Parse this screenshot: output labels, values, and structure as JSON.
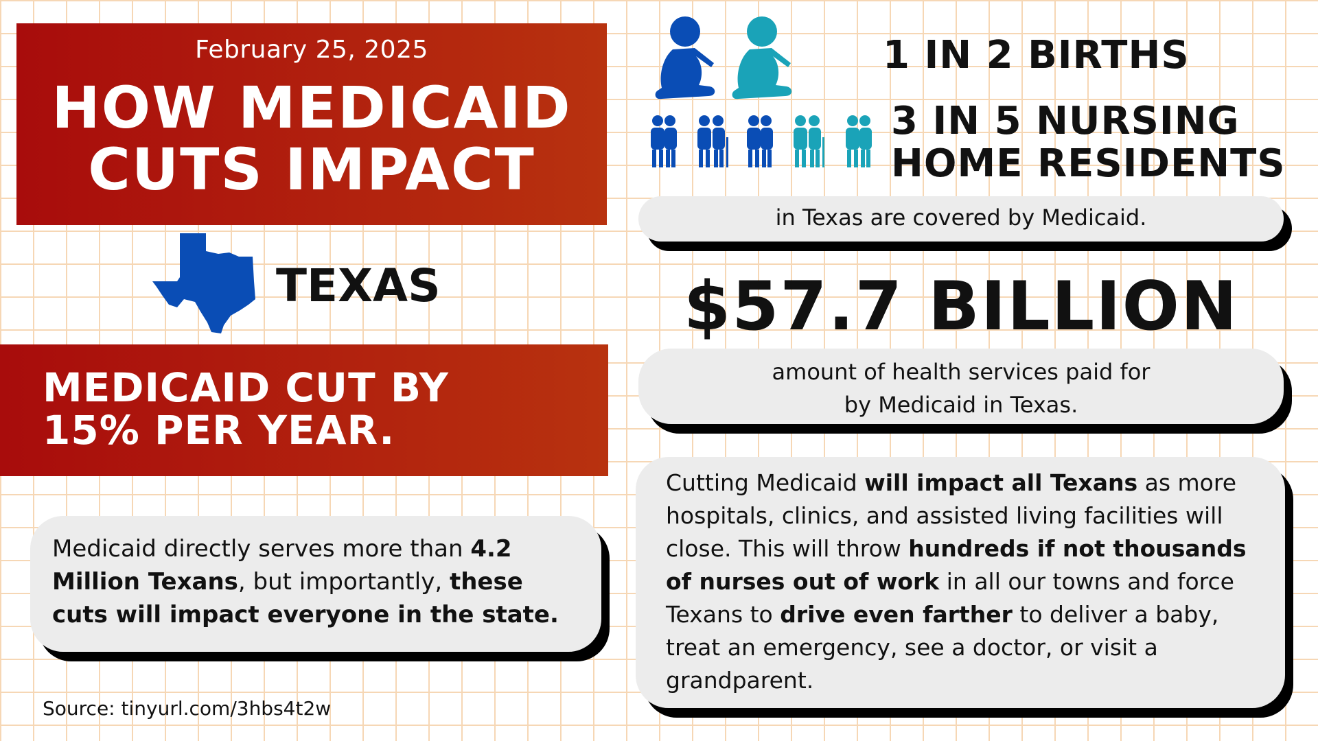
{
  "header": {
    "date": "February 25, 2025",
    "title_line1": "HOW MEDICAID",
    "title_line2": "CUTS IMPACT"
  },
  "state": {
    "name": "TEXAS",
    "icon": "texas-map-icon",
    "icon_color": "#0a4db5"
  },
  "cut_banner": {
    "line1": "MEDICAID CUT BY",
    "line2": "15% PER YEAR."
  },
  "served": {
    "p1": "Medicaid directly serves more than ",
    "b1": "4.2 Million Texans",
    "p2": ", but importantly, ",
    "b2": "these cuts will impact everyone in the state."
  },
  "source": "Source: tinyurl.com/3hbs4t2w",
  "stats": {
    "births": "1 IN 2 BIRTHS",
    "nursing_line1": "3 IN 5 NURSING",
    "nursing_line2": "HOME RESIDENTS",
    "covered": "in Texas are covered by Medicaid.",
    "amount": "$57.7 BILLION",
    "paid_line1": "amount of health services paid for",
    "paid_line2": "by Medicaid in Texas."
  },
  "impact": {
    "s1": "Cutting Medicaid ",
    "b1": "will impact all Texans",
    "s2": " as more hospitals, clinics, and assisted living facilities will close. This will throw ",
    "b2": "hundreds if not thousands of nurses out of work",
    "s3": " in all our towns and force Texans to ",
    "b3": "drive even farther",
    "s4": " to deliver a baby, treat an emergency, see a doctor, or visit a grandparent."
  },
  "colors": {
    "red_start": "#a80c0c",
    "red_end": "#b8320f",
    "blue": "#0a4db5",
    "teal": "#1aa3b8",
    "grid": "#f6d7b5"
  }
}
